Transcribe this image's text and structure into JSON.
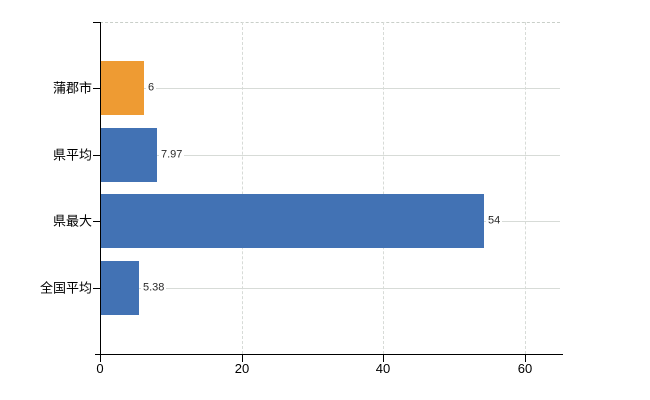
{
  "chart_data": {
    "type": "bar",
    "orientation": "horizontal",
    "title": "",
    "categories": [
      "蒲郡市",
      "県平均",
      "県最大",
      "全国平均"
    ],
    "values": [
      6,
      7.97,
      54,
      5.38
    ],
    "value_labels": [
      "6",
      "7.97",
      "54",
      "5.38"
    ],
    "x_tick_labels": [
      "0",
      "20",
      "40",
      "60"
    ],
    "x_tick_values": [
      0,
      20,
      40,
      60
    ],
    "xlim": [
      0,
      64.9
    ],
    "grid": true,
    "legend": "none",
    "colors": {
      "highlight_bar": "#ee9b33",
      "default_bar": "#4272b4",
      "gridline": "#d7dbd7",
      "axis": "#000000",
      "label_text": "#000000",
      "value_text": "#2a2a2a",
      "background": "#ffffff"
    },
    "bar_color_keys": [
      "highlight_bar",
      "default_bar",
      "default_bar",
      "default_bar"
    ]
  }
}
